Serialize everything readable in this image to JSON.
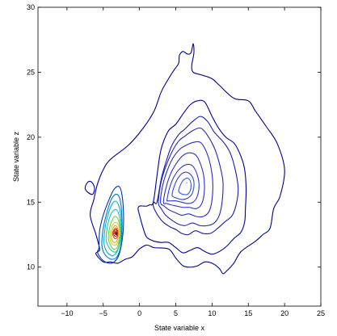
{
  "chart_data": {
    "type": "contour",
    "title": "",
    "xlabel": "State variable x",
    "ylabel": "State variable z",
    "xlim": [
      -14,
      25
    ],
    "ylim": [
      7,
      30
    ],
    "xticks": [
      -10,
      -5,
      0,
      5,
      10,
      15,
      20,
      25
    ],
    "yticks": [
      10,
      15,
      20,
      25,
      30
    ],
    "xtick_labels": [
      "−10",
      "−5",
      "0",
      "5",
      "10",
      "15",
      "20",
      "25"
    ],
    "ytick_labels": [
      "10",
      "15",
      "20",
      "25",
      "30"
    ],
    "grid": false,
    "legend": "none",
    "modes": [
      {
        "center": [
          -3.2,
          12.6
        ],
        "description": "sharp peak"
      },
      {
        "center": [
          6.5,
          16.5
        ],
        "description": "broad peak"
      }
    ],
    "contours": [
      {
        "level": 1,
        "color": "#00008f",
        "x": [
          -5.5,
          -6,
          -6.8,
          -6.3,
          -5.8,
          -5,
          -4,
          -1.5,
          0.5,
          2,
          3,
          4,
          4.8,
          5.4,
          5.5,
          6,
          6.6,
          7.1,
          7.4,
          7.5,
          7.2,
          7.4,
          8.5,
          10,
          11,
          13,
          15,
          16,
          17.5,
          19,
          20,
          19.4,
          18.5,
          18,
          17,
          16,
          14,
          13,
          12,
          11.5,
          11,
          10,
          9,
          8,
          7,
          6,
          5,
          4,
          2,
          1,
          0,
          -1,
          -2,
          -3,
          -4,
          -5,
          -6,
          -5.7,
          -5.5
        ],
        "y": [
          11.4,
          12.5,
          14,
          15.2,
          16.4,
          17.5,
          18.3,
          19.4,
          20.7,
          22,
          23.5,
          24.5,
          25.2,
          25.7,
          26.3,
          26.6,
          26.4,
          26.5,
          27.2,
          26.5,
          25.5,
          25,
          24.8,
          24.5,
          24,
          23,
          22.8,
          22,
          20.8,
          19.5,
          17.5,
          15.5,
          14.5,
          13,
          12.5,
          12,
          11.2,
          10.3,
          9.7,
          9.5,
          9.9,
          10.3,
          10.4,
          10.1,
          10,
          10.1,
          10.7,
          11.4,
          11.5,
          11.7,
          11.4,
          10.8,
          10.6,
          10.3,
          10.4,
          10.4,
          11,
          11.2,
          11.4
        ]
      },
      {
        "level": 2,
        "color": "#000096",
        "x": [
          -7.2,
          -7.5,
          -7.2,
          -6.8,
          -6.4,
          -6.2,
          -6.5,
          -7.2
        ],
        "y": [
          15.8,
          16.1,
          16.5,
          16.6,
          16.4,
          16,
          15.6,
          15.8
        ]
      },
      {
        "level": 3,
        "color": "#000099",
        "x": [
          1.9,
          2.4,
          2.8,
          3.2,
          4,
          5,
          6,
          7,
          8,
          9,
          10,
          10.9,
          11.9,
          13.1,
          14,
          14.5,
          14.7,
          14.6,
          14.5,
          14,
          13,
          12,
          11,
          10,
          9,
          8,
          7,
          6,
          5,
          4,
          3,
          2,
          1,
          0.5,
          0,
          -0.2,
          0,
          0.5,
          1,
          1.4,
          1.9
        ],
        "y": [
          15,
          17,
          18.6,
          19.5,
          20.5,
          21,
          21.8,
          22.5,
          22.8,
          22.7,
          21.6,
          20.7,
          20,
          19.5,
          18.5,
          17.5,
          16,
          14.5,
          13.5,
          12.7,
          12.2,
          11.6,
          11.2,
          11,
          11.2,
          11.5,
          11.3,
          11.1,
          11.5,
          11.9,
          11.9,
          12,
          12.3,
          13,
          14,
          14.5,
          14.7,
          14.7,
          14.7,
          14.8,
          15
        ]
      },
      {
        "level": 4,
        "color": "#1a1aa8",
        "x": [
          2.4,
          3,
          3.6,
          4.4,
          5.4,
          6.2,
          7.3,
          8.4,
          9.4,
          10.3,
          11.6,
          12.5,
          13.2,
          13.6,
          13.4,
          12.8,
          11.8,
          10.8,
          9.8,
          8.7,
          7.7,
          6.7,
          5.8,
          5,
          4.2,
          3.2,
          2.4,
          1.9,
          2,
          2.4
        ],
        "y": [
          15,
          16.8,
          18,
          19.3,
          20.2,
          20.6,
          21.2,
          21.6,
          21.2,
          20.4,
          19.6,
          18.8,
          17.5,
          16.1,
          15,
          14,
          13.5,
          13,
          12.6,
          12.6,
          12.8,
          12.5,
          12.6,
          12.9,
          13.1,
          13.5,
          14.1,
          14.7,
          15,
          15
        ]
      },
      {
        "level": 5,
        "color": "#2525b8",
        "x": [
          2.6,
          3,
          3.6,
          4.5,
          5.4,
          6.3,
          7.3,
          8.4,
          9.3,
          10.3,
          11,
          11.5,
          11.4,
          11,
          10.3,
          9.4,
          8.3,
          7.3,
          6.3,
          5.4,
          4.5,
          3.6,
          3,
          2.6
        ],
        "y": [
          15,
          16.6,
          17.7,
          18.9,
          19.7,
          20.1,
          20.5,
          20.7,
          20.2,
          19.2,
          18,
          16.6,
          15.1,
          14,
          13.4,
          13.2,
          13.2,
          13.4,
          13.2,
          13.3,
          13.6,
          14,
          14.5,
          15
        ]
      },
      {
        "level": 6,
        "color": "#2a2ac4",
        "x": [
          2.9,
          3.2,
          3.8,
          4.6,
          5.6,
          6.5,
          7.4,
          8.4,
          9.2,
          9.8,
          10.1,
          10,
          9.6,
          8.8,
          7.8,
          6.8,
          5.8,
          4.9,
          4.1,
          3.4,
          2.9
        ],
        "y": [
          15,
          16.3,
          17.4,
          18.4,
          19.1,
          19.4,
          19.6,
          19.6,
          18.9,
          17.8,
          16.5,
          15.2,
          14.3,
          13.9,
          13.9,
          14.1,
          14,
          14.2,
          14.4,
          14.7,
          15
        ]
      },
      {
        "level": 7,
        "color": "#2b30cf",
        "x": [
          3.3,
          3.7,
          4.3,
          5.1,
          6,
          6.9,
          7.8,
          8.5,
          8.9,
          8.9,
          8.5,
          7.8,
          6.9,
          6,
          5.1,
          4.3,
          3.7,
          3.3
        ],
        "y": [
          15,
          16.2,
          17.2,
          18,
          18.6,
          18.8,
          18.6,
          17.8,
          16.8,
          15.6,
          14.8,
          14.5,
          14.6,
          14.6,
          14.7,
          14.8,
          14.9,
          15
        ]
      },
      {
        "level": 8,
        "color": "#2f3ad8",
        "x": [
          3.8,
          4.2,
          4.8,
          5.6,
          6.5,
          7.3,
          7.9,
          8.2,
          8,
          7.4,
          6.6,
          5.8,
          5,
          4.4,
          3.9,
          3.8
        ],
        "y": [
          15.2,
          16.2,
          17,
          17.6,
          17.9,
          17.8,
          17.2,
          16.4,
          15.5,
          15,
          14.9,
          15,
          15.1,
          15.1,
          15.1,
          15.2
        ]
      },
      {
        "level": 9,
        "color": "#3048e0",
        "x": [
          4.5,
          4.9,
          5.5,
          6.2,
          6.9,
          7.4,
          7.5,
          7.2,
          6.6,
          5.9,
          5.2,
          4.7,
          4.5
        ],
        "y": [
          15.6,
          16.4,
          17,
          17.3,
          17.2,
          16.8,
          16.2,
          15.6,
          15.3,
          15.2,
          15.3,
          15.4,
          15.6
        ]
      },
      {
        "level": 10,
        "color": "#3358e8",
        "x": [
          5.4,
          5.8,
          6.3,
          6.8,
          7.1,
          7,
          6.6,
          6,
          5.6,
          5.4
        ],
        "y": [
          15.9,
          16.5,
          16.8,
          16.8,
          16.4,
          15.9,
          15.6,
          15.6,
          15.7,
          15.9
        ]
      },
      {
        "level": 11,
        "color": "#0033aa",
        "x": [
          -5.6,
          -5.5,
          -5,
          -4.2,
          -3.5,
          -2.8,
          -2.4,
          -2.2,
          -2.3,
          -2.8,
          -3.5,
          -4.2,
          -5,
          -5.6,
          -5.8,
          -5.6
        ],
        "y": [
          11.5,
          12.8,
          14,
          15.2,
          16,
          16.2,
          15.5,
          14,
          12.5,
          11,
          10.4,
          10.3,
          10.5,
          10.9,
          11.2,
          11.5
        ]
      },
      {
        "level": 12,
        "color": "#0077cc",
        "x": [
          -5.2,
          -5,
          -4.5,
          -3.9,
          -3.3,
          -2.8,
          -2.5,
          -2.4,
          -2.6,
          -3.1,
          -3.8,
          -4.5,
          -5,
          -5.2
        ],
        "y": [
          11.8,
          13,
          14.2,
          15.2,
          15.6,
          15.4,
          14.5,
          13,
          11.6,
          10.8,
          10.6,
          10.8,
          11.2,
          11.8
        ]
      },
      {
        "level": 13,
        "color": "#00b0c8",
        "x": [
          -4.9,
          -4.7,
          -4.2,
          -3.6,
          -3.1,
          -2.7,
          -2.5,
          -2.6,
          -3,
          -3.6,
          -4.2,
          -4.7,
          -4.9
        ],
        "y": [
          12,
          13.2,
          14.3,
          15,
          15,
          14.4,
          13.4,
          12.2,
          11.3,
          10.9,
          11,
          11.4,
          12
        ]
      },
      {
        "level": 14,
        "color": "#20c8a0",
        "x": [
          -4.6,
          -4.4,
          -4,
          -3.5,
          -3,
          -2.7,
          -2.6,
          -2.8,
          -3.2,
          -3.7,
          -4.2,
          -4.6
        ],
        "y": [
          12.1,
          13.2,
          14,
          14.4,
          14.3,
          13.6,
          12.7,
          11.7,
          11.2,
          11.2,
          11.5,
          12.1
        ]
      },
      {
        "level": 15,
        "color": "#70d040",
        "x": [
          -4.3,
          -4.1,
          -3.7,
          -3.3,
          -2.9,
          -2.7,
          -2.8,
          -3.1,
          -3.6,
          -4,
          -4.3
        ],
        "y": [
          12.2,
          13.1,
          13.7,
          13.9,
          13.6,
          12.9,
          12.1,
          11.5,
          11.4,
          11.7,
          12.2
        ]
      },
      {
        "level": 16,
        "color": "#c8d820",
        "x": [
          -4.1,
          -3.9,
          -3.5,
          -3.1,
          -2.8,
          -2.8,
          -3.1,
          -3.5,
          -3.9,
          -4.1
        ],
        "y": [
          12.3,
          13,
          13.4,
          13.4,
          13,
          12.3,
          11.8,
          11.7,
          11.9,
          12.3
        ]
      },
      {
        "level": 17,
        "color": "#f0a020",
        "x": [
          -3.9,
          -3.7,
          -3.4,
          -3.1,
          -2.9,
          -3,
          -3.3,
          -3.7,
          -3.9
        ],
        "y": [
          12.4,
          12.9,
          13.2,
          13.1,
          12.7,
          12.2,
          11.9,
          12,
          12.4
        ]
      },
      {
        "level": 18,
        "color": "#e05010",
        "x": [
          -3.7,
          -3.5,
          -3.2,
          -3,
          -3.1,
          -3.4,
          -3.7
        ],
        "y": [
          12.5,
          12.9,
          13,
          12.7,
          12.3,
          12.2,
          12.5
        ]
      },
      {
        "level": 19,
        "color": "#cc1010",
        "x": [
          -3.55,
          -3.4,
          -3.15,
          -3.05,
          -3.2,
          -3.45,
          -3.55
        ],
        "y": [
          12.6,
          12.85,
          12.85,
          12.6,
          12.4,
          12.4,
          12.6
        ]
      },
      {
        "level": 20,
        "color": "#8b0000",
        "x": [
          -3.4,
          -3.25,
          -3.15,
          -3.25,
          -3.4
        ],
        "y": [
          12.62,
          12.75,
          12.62,
          12.5,
          12.62
        ]
      }
    ]
  }
}
